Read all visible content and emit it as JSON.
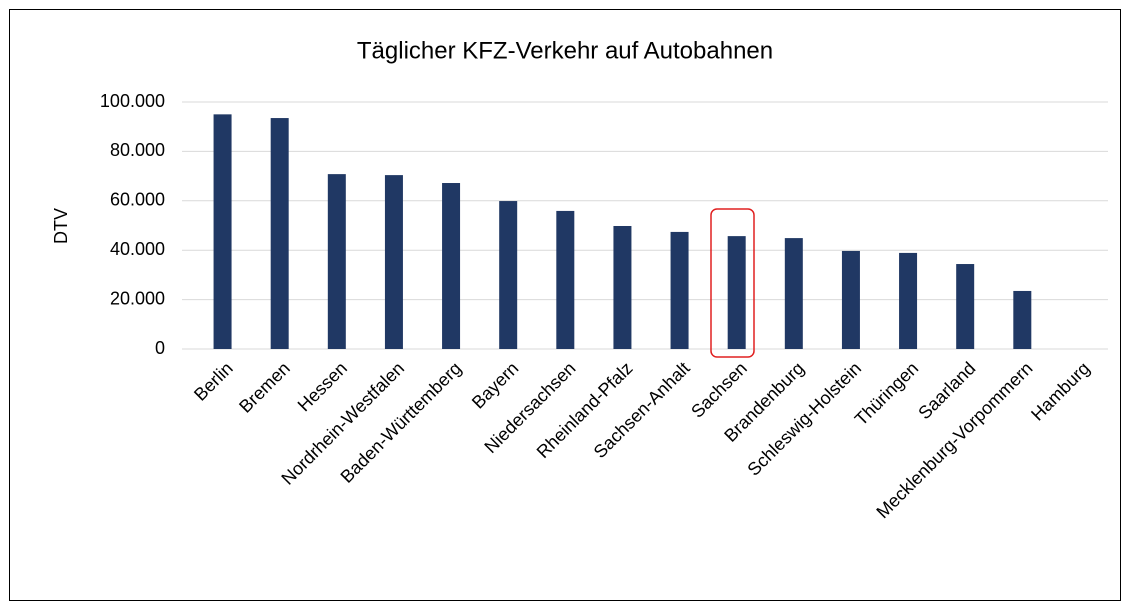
{
  "chart_data": {
    "type": "bar",
    "title": "Täglicher KFZ-Verkehr auf Autobahnen",
    "y_label": "DTV",
    "categories": [
      "Berlin",
      "Bremen",
      "Hessen",
      "Nordrhein-Westfalen",
      "Baden-Württemberg",
      "Bayern",
      "Niedersachsen",
      "Rheinland-Pfalz",
      "Sachsen-Anhalt",
      "Sachsen",
      "Brandenburg",
      "Schleswig-Holstein",
      "Thüringen",
      "Saarland",
      "Mecklenburg-Vorpommern",
      "Hamburg"
    ],
    "values": [
      95000,
      93500,
      70800,
      70400,
      67200,
      59900,
      55900,
      49800,
      47400,
      45700,
      44900,
      39700,
      38900,
      34400,
      23500,
      null
    ],
    "color": "#203864",
    "ylim": [
      0,
      100000
    ],
    "yticks": [
      0,
      {
        "value": 20000,
        "label": "20.000"
      },
      {
        "value": 40000,
        "label": "40.000"
      },
      {
        "value": 60000,
        "label": "60.000"
      },
      {
        "value": 80000,
        "label": "80.000"
      },
      {
        "value": 100000,
        "label": "100.000"
      }
    ],
    "grid": true
  }
}
